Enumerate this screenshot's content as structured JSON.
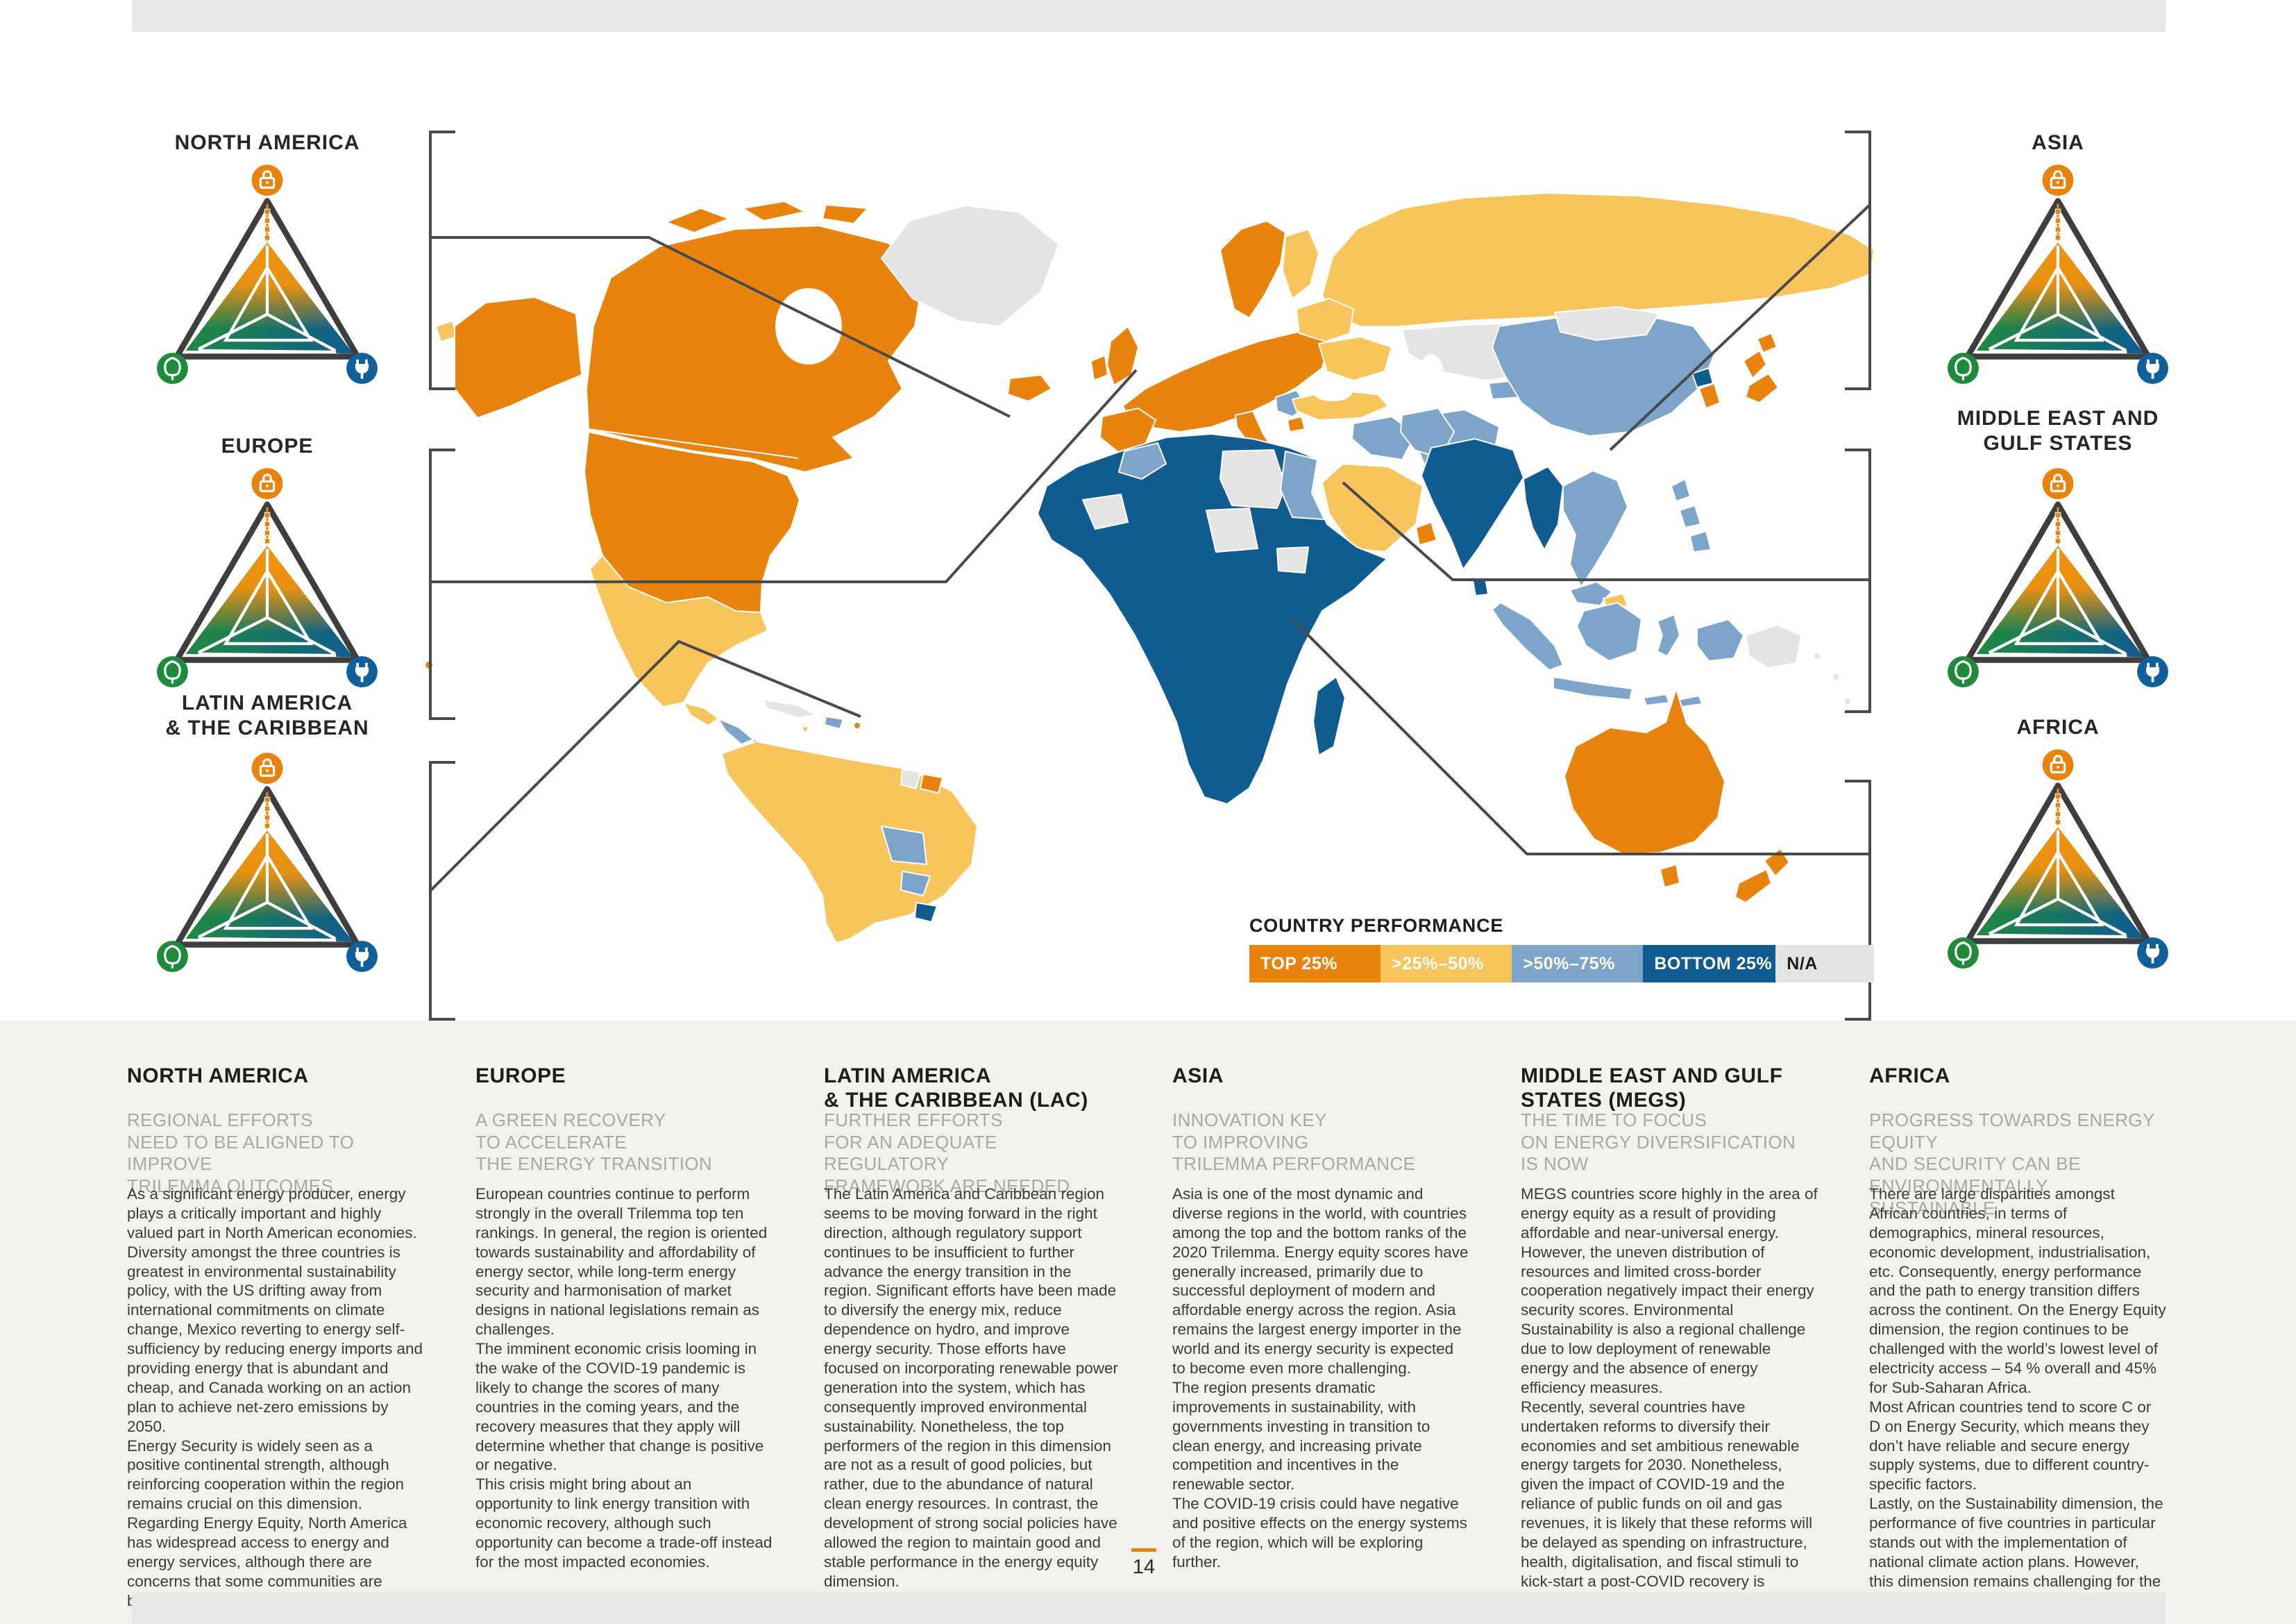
{
  "page": {
    "number": "14"
  },
  "icons": {
    "security": "lock-icon",
    "sustainability": "tree-icon",
    "equity": "plug-icon"
  },
  "legend": {
    "title": "COUNTRY PERFORMANCE",
    "items": [
      {
        "label": "TOP 25%",
        "color": "#E8830E",
        "text_color": "#FFFFFF"
      },
      {
        "label": ">25%–50%",
        "color": "#F7C55C",
        "text_color": "#FFFFFF"
      },
      {
        "label": ">50%–75%",
        "color": "#7DA4C9",
        "text_color": "#FFFFFF"
      },
      {
        "label": "BOTTOM 25%",
        "color": "#105C90",
        "text_color": "#FFFFFF"
      },
      {
        "label": "N/A",
        "color": "#E4E4E4",
        "text_color": "#1D1D1B"
      }
    ]
  },
  "callouts": [
    {
      "label_lines": [
        "NORTH AMERICA"
      ]
    },
    {
      "label_lines": [
        "EUROPE"
      ]
    },
    {
      "label_lines": [
        "LATIN AMERICA",
        "& THE CARIBBEAN"
      ]
    },
    {
      "label_lines": [
        "ASIA"
      ]
    },
    {
      "label_lines": [
        "MIDDLE EAST AND",
        "GULF STATES"
      ]
    },
    {
      "label_lines": [
        "AFRICA"
      ]
    }
  ],
  "columns": [
    {
      "heading_lines": [
        "NORTH AMERICA"
      ],
      "subheading_lines": [
        "REGIONAL EFFORTS",
        "NEED TO BE ALIGNED TO IMPROVE",
        "TRILEMMA OUTCOMES"
      ],
      "paragraphs": [
        "As a significant energy producer, energy plays a critically important and highly valued part in North American economies. Diversity amongst the three countries is greatest in environmental sustainability policy, with the US drifting away from international commitments on climate change, Mexico reverting to energy self-sufficiency by reducing energy imports and providing energy that is abundant and cheap, and Canada working on an action plan to achieve net-zero emissions by 2050.",
        "Energy Security is widely seen as a positive continental strength, although reinforcing cooperation within the region remains crucial on this dimension. Regarding Energy Equity, North America has widespread access to energy and energy services, although there are concerns that some communities are being left behind."
      ]
    },
    {
      "heading_lines": [
        "EUROPE"
      ],
      "subheading_lines": [
        "A GREEN RECOVERY",
        "TO ACCELERATE",
        "THE ENERGY TRANSITION"
      ],
      "paragraphs": [
        "European countries continue to perform strongly in the overall Trilemma top ten rankings. In general, the region is oriented towards sustainability and affordability of energy sector, while long-term energy security and harmonisation of market designs in national legislations remain as challenges.",
        "The imminent economic crisis looming in the wake of the COVID-19 pandemic is likely to change the scores of many countries in the coming years, and the recovery measures that they apply will determine whether that change is positive or negative.",
        "This crisis might bring about an opportunity to link energy transition with economic recovery, although such opportunity can become a trade-off instead for the most impacted economies."
      ]
    },
    {
      "heading_lines": [
        "LATIN AMERICA",
        "& THE CARIBBEAN (LAC)"
      ],
      "subheading_lines": [
        "FURTHER EFFORTS",
        "FOR AN ADEQUATE REGULATORY",
        "FRAMEWORK ARE NEEDED"
      ],
      "paragraphs": [
        "The Latin America and Caribbean region seems to be moving forward in the right direction, although regulatory support continues to be insufficient to further advance the energy transition in the region. Significant efforts have been made to diversify the energy mix, reduce dependence on hydro, and improve energy security. Those efforts have focused on incorporating renewable power generation into the system, which has consequently improved environmental sustainability. Nonetheless, the top performers of the region in this dimension are not as a result of good policies, but rather, due to the abundance of natural clean energy resources. In contrast, the development of strong social policies have allowed the region to maintain good and stable performance in the energy equity dimension."
      ]
    },
    {
      "heading_lines": [
        "ASIA"
      ],
      "subheading_lines": [
        "INNOVATION KEY",
        "TO IMPROVING",
        "TRILEMMA PERFORMANCE"
      ],
      "paragraphs": [
        "Asia is one of the most dynamic and diverse regions in the world, with countries among the top and the bottom ranks of the 2020 Trilemma. Energy equity scores have generally increased, primarily due to successful deployment of modern and affordable energy across the region. Asia remains the largest energy importer in the world and its energy security is expected to become even more challenging.",
        "The region presents dramatic improvements in sustainability, with governments investing in transition to clean energy, and increasing private competition and incentives in the renewable sector.",
        "The COVID-19 crisis could have negative and positive effects on the energy systems of the region, which will be exploring further."
      ]
    },
    {
      "heading_lines": [
        "MIDDLE EAST AND GULF",
        "STATES (MEGS)"
      ],
      "subheading_lines": [
        "THE TIME TO FOCUS",
        "ON ENERGY DIVERSIFICATION",
        "IS NOW"
      ],
      "paragraphs": [
        "MEGS countries score highly in the area of energy equity as a result of providing affordable and near-universal energy. However, the uneven distribution of resources and limited cross-border cooperation negatively impact their energy security scores. Environmental Sustainability is also a regional challenge due to low deployment of renewable energy and the absence of energy efficiency measures.",
        "Recently, several countries have undertaken reforms to diversify their economies and set ambitious renewable energy targets for 2030. Nonetheless, given the impact of COVID-19 and the reliance of public funds on oil and gas revenues, it is likely that these reforms will be delayed as spending on infrastructure, health, digitalisation, and fiscal stimuli to kick-start a post-COVID recovery is prioritised."
      ]
    },
    {
      "heading_lines": [
        "AFRICA"
      ],
      "subheading_lines": [
        "PROGRESS TOWARDS ENERGY EQUITY",
        "AND SECURITY CAN BE",
        "ENVIRONMENTALLY SUSTAINABLE"
      ],
      "paragraphs": [
        "There are large disparities amongst African countries, in terms of demographics, mineral resources, economic development, industrialisation, etc. Consequently, energy performance and the path to energy transition differs across the continent. On the Energy Equity dimension, the region continues to be challenged with the world’s lowest level of electricity access – 54 % overall and 45% for Sub-Saharan Africa.",
        "Most African countries tend to score C or D on Energy Security, which means they don’t have reliable and secure energy supply systems, due to different country-specific factors.",
        "Lastly, on the Sustainability dimension, the performance of five countries in particular stands out with the implementation of national climate action plans. However, this dimension remains challenging for the other African countries."
      ]
    }
  ]
}
